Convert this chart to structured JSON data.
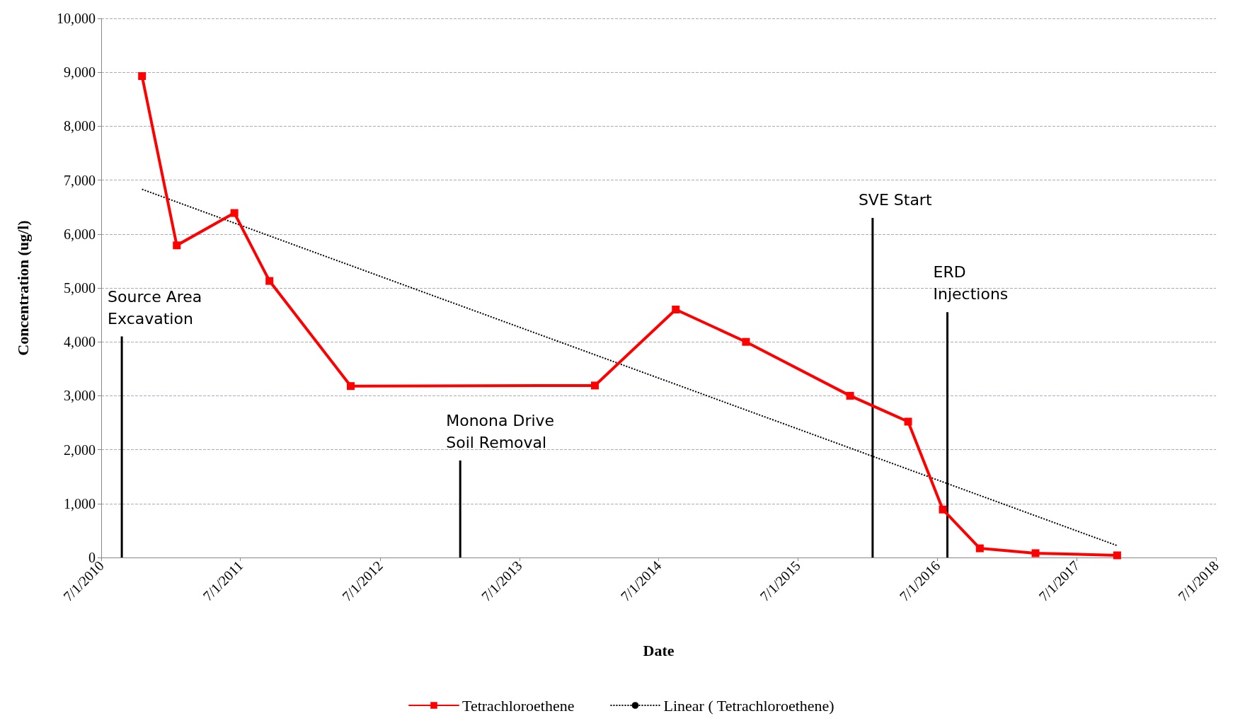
{
  "chart_data": {
    "type": "line",
    "xlabel": "Date",
    "ylabel": "Concentration (ug/l)",
    "xlim": [
      "2010-07-01",
      "2018-07-01"
    ],
    "xticks": [
      {
        "value": "2010-07-01",
        "label": "7/1/2010"
      },
      {
        "value": "2011-07-01",
        "label": "7/1/2011"
      },
      {
        "value": "2012-07-01",
        "label": "7/1/2012"
      },
      {
        "value": "2013-07-01",
        "label": "7/1/2013"
      },
      {
        "value": "2014-07-01",
        "label": "7/1/2014"
      },
      {
        "value": "2015-07-01",
        "label": "7/1/2015"
      },
      {
        "value": "2016-07-01",
        "label": "7/1/2016"
      },
      {
        "value": "2017-07-01",
        "label": "7/1/2017"
      },
      {
        "value": "2018-07-01",
        "label": "7/1/2018"
      }
    ],
    "ylim": [
      0,
      10000
    ],
    "yticks": [
      0,
      {
        "value": 1000,
        "label": "1,000"
      },
      {
        "value": 2000,
        "label": "2,000"
      },
      {
        "value": 3000,
        "label": "3,000"
      },
      {
        "value": 4000,
        "label": "4,000"
      },
      {
        "value": 5000,
        "label": "5,000"
      },
      {
        "value": 6000,
        "label": "6,000"
      },
      {
        "value": 7000,
        "label": "7,000"
      },
      {
        "value": 8000,
        "label": "8,000"
      },
      {
        "value": 9000,
        "label": "9,000"
      },
      {
        "value": 10000,
        "label": "10,000"
      }
    ],
    "grid": "y",
    "legend": "bottom",
    "series": [
      {
        "name": "Tetrachloroethene",
        "color": "#ff0000",
        "marker": "square",
        "line_style": "solid",
        "x": [
          "2010-10-16",
          "2011-01-15",
          "2011-06-15",
          "2011-09-15",
          "2012-04-15",
          "2014-01-15",
          "2014-08-15",
          "2015-02-15",
          "2015-11-15",
          "2016-04-15",
          "2016-07-15",
          "2016-10-20",
          "2017-03-15",
          "2017-10-15"
        ],
        "values": [
          8930,
          5790,
          6390,
          5130,
          3180,
          3190,
          4600,
          4000,
          3000,
          2520,
          890,
          170,
          80,
          40
        ]
      },
      {
        "name": "Linear ( Tetrachloroethene)",
        "color": "#000000",
        "marker": "none",
        "line_style": "dotted",
        "x": [
          "2010-10-16",
          "2017-10-15"
        ],
        "values": [
          6830,
          220
        ]
      },
      {
        "color": "#000000",
        "marker": "none",
        "line_style": "solid",
        "x": [
          "2010-08-24",
          "2010-08-24"
        ],
        "values": [
          0,
          4100
        ]
      },
      {
        "color": "#000000",
        "marker": "none",
        "line_style": "solid",
        "x": [
          "2013-01-27",
          "2013-01-27"
        ],
        "values": [
          0,
          1800
        ]
      },
      {
        "color": "#000000",
        "marker": "none",
        "line_style": "solid",
        "x": [
          "2016-01-13",
          "2016-01-13"
        ],
        "values": [
          0,
          6300
        ]
      },
      {
        "color": "#000000",
        "marker": "none",
        "line_style": "solid",
        "x": [
          "2016-07-27",
          "2016-07-27"
        ],
        "values": [
          0,
          4550
        ]
      }
    ],
    "annotations": [
      "Source Area\nExcavation",
      "Monona Drive\nSoil Removal",
      "SVE Start",
      "ERD\nInjections"
    ]
  }
}
